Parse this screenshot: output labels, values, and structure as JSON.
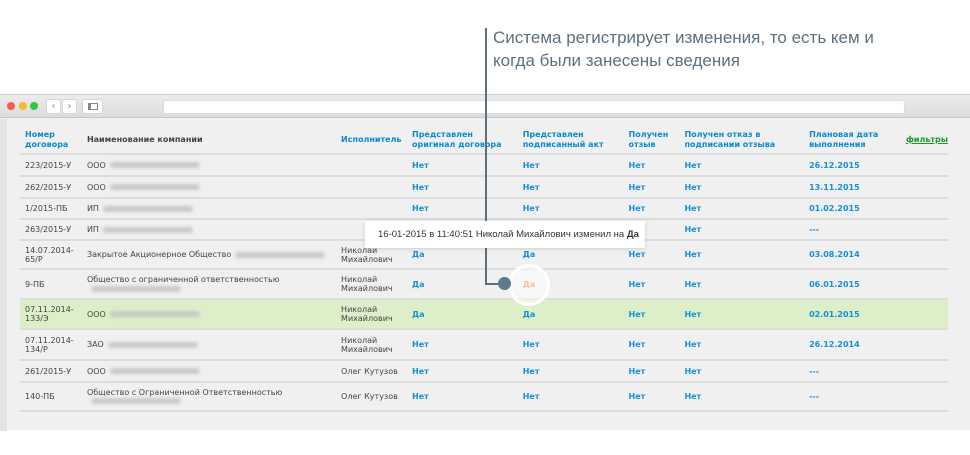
{
  "annotation": {
    "text": "Система регистрирует изменения, то есть кем и когда были занесены сведения"
  },
  "tooltip": {
    "text": "16-01-2015 в 11:40:51 Николай Михайлович изменил на ",
    "value": "Да"
  },
  "browser": {
    "back": "‹",
    "forward": "›",
    "sidebar_icon": "sidebar-icon"
  },
  "colors": {
    "link": "#1390d8",
    "changed": "#f07a3a",
    "highlight_row": "#dcefc8",
    "filters": "#1a9a2a"
  },
  "table": {
    "headers": [
      "Номер договора",
      "Наименование компании",
      "Исполнитель",
      "Представлен оригинал договора",
      "Представлен подписанный акт",
      "Получен отзыв",
      "Получен отказ в подписании отзыва",
      "Плановая дата выполнения"
    ],
    "filters_label": "фильтры",
    "rows": [
      {
        "num": "223/2015-У",
        "company": "ООО",
        "exec": "",
        "orig": "Нет",
        "act": "Нет",
        "review": "Нет",
        "refusal": "Нет",
        "date": "26.12.2015"
      },
      {
        "num": "262/2015-У",
        "company": "ООО",
        "exec": "",
        "orig": "Нет",
        "act": "Нет",
        "review": "Нет",
        "refusal": "Нет",
        "date": "13.11.2015"
      },
      {
        "num": "1/2015-ПБ",
        "company": "ИП",
        "exec": "",
        "orig": "Нет",
        "act": "Нет",
        "review": "Нет",
        "refusal": "Нет",
        "date": "01.02.2015"
      },
      {
        "num": "263/2015-У",
        "company": "ИП",
        "exec": "",
        "orig": "",
        "act": "",
        "review": "",
        "refusal": "Нет",
        "date": "---"
      },
      {
        "num": "14.07.2014-65/Р",
        "company": "Закрытое Акционерное Общество",
        "exec": "Николай Михайлович",
        "orig": "Да",
        "act": "Да",
        "review": "Нет",
        "refusal": "Нет",
        "date": "03.08.2014"
      },
      {
        "num": "9-ПБ",
        "company": "Общество с ограниченной ответственностью",
        "exec": "Николай Михайлович",
        "orig": "Да",
        "act": "Да",
        "review": "Нет",
        "refusal": "Нет",
        "date": "06.01.2015",
        "changed": true
      },
      {
        "num": "07.11.2014-133/Э",
        "company": "ООО",
        "exec": "Николай Михайлович",
        "orig": "Да",
        "act": "Да",
        "review": "Нет",
        "refusal": "Нет",
        "date": "02.01.2015",
        "highlight": true
      },
      {
        "num": "07.11.2014-134/Р",
        "company": "ЗАО",
        "exec": "Николай Михайлович",
        "orig": "Нет",
        "act": "Нет",
        "review": "Нет",
        "refusal": "Нет",
        "date": "26.12.2014"
      },
      {
        "num": "261/2015-У",
        "company": "ООО",
        "exec": "Олег Кутузов",
        "orig": "Нет",
        "act": "Нет",
        "review": "Нет",
        "refusal": "Нет",
        "date": "---"
      },
      {
        "num": "140-ПБ",
        "company": "Общество с Ограниченной Ответственностью",
        "exec": "Олег Кутузов",
        "orig": "Нет",
        "act": "Нет",
        "review": "Нет",
        "refusal": "Нет",
        "date": "---"
      }
    ]
  }
}
